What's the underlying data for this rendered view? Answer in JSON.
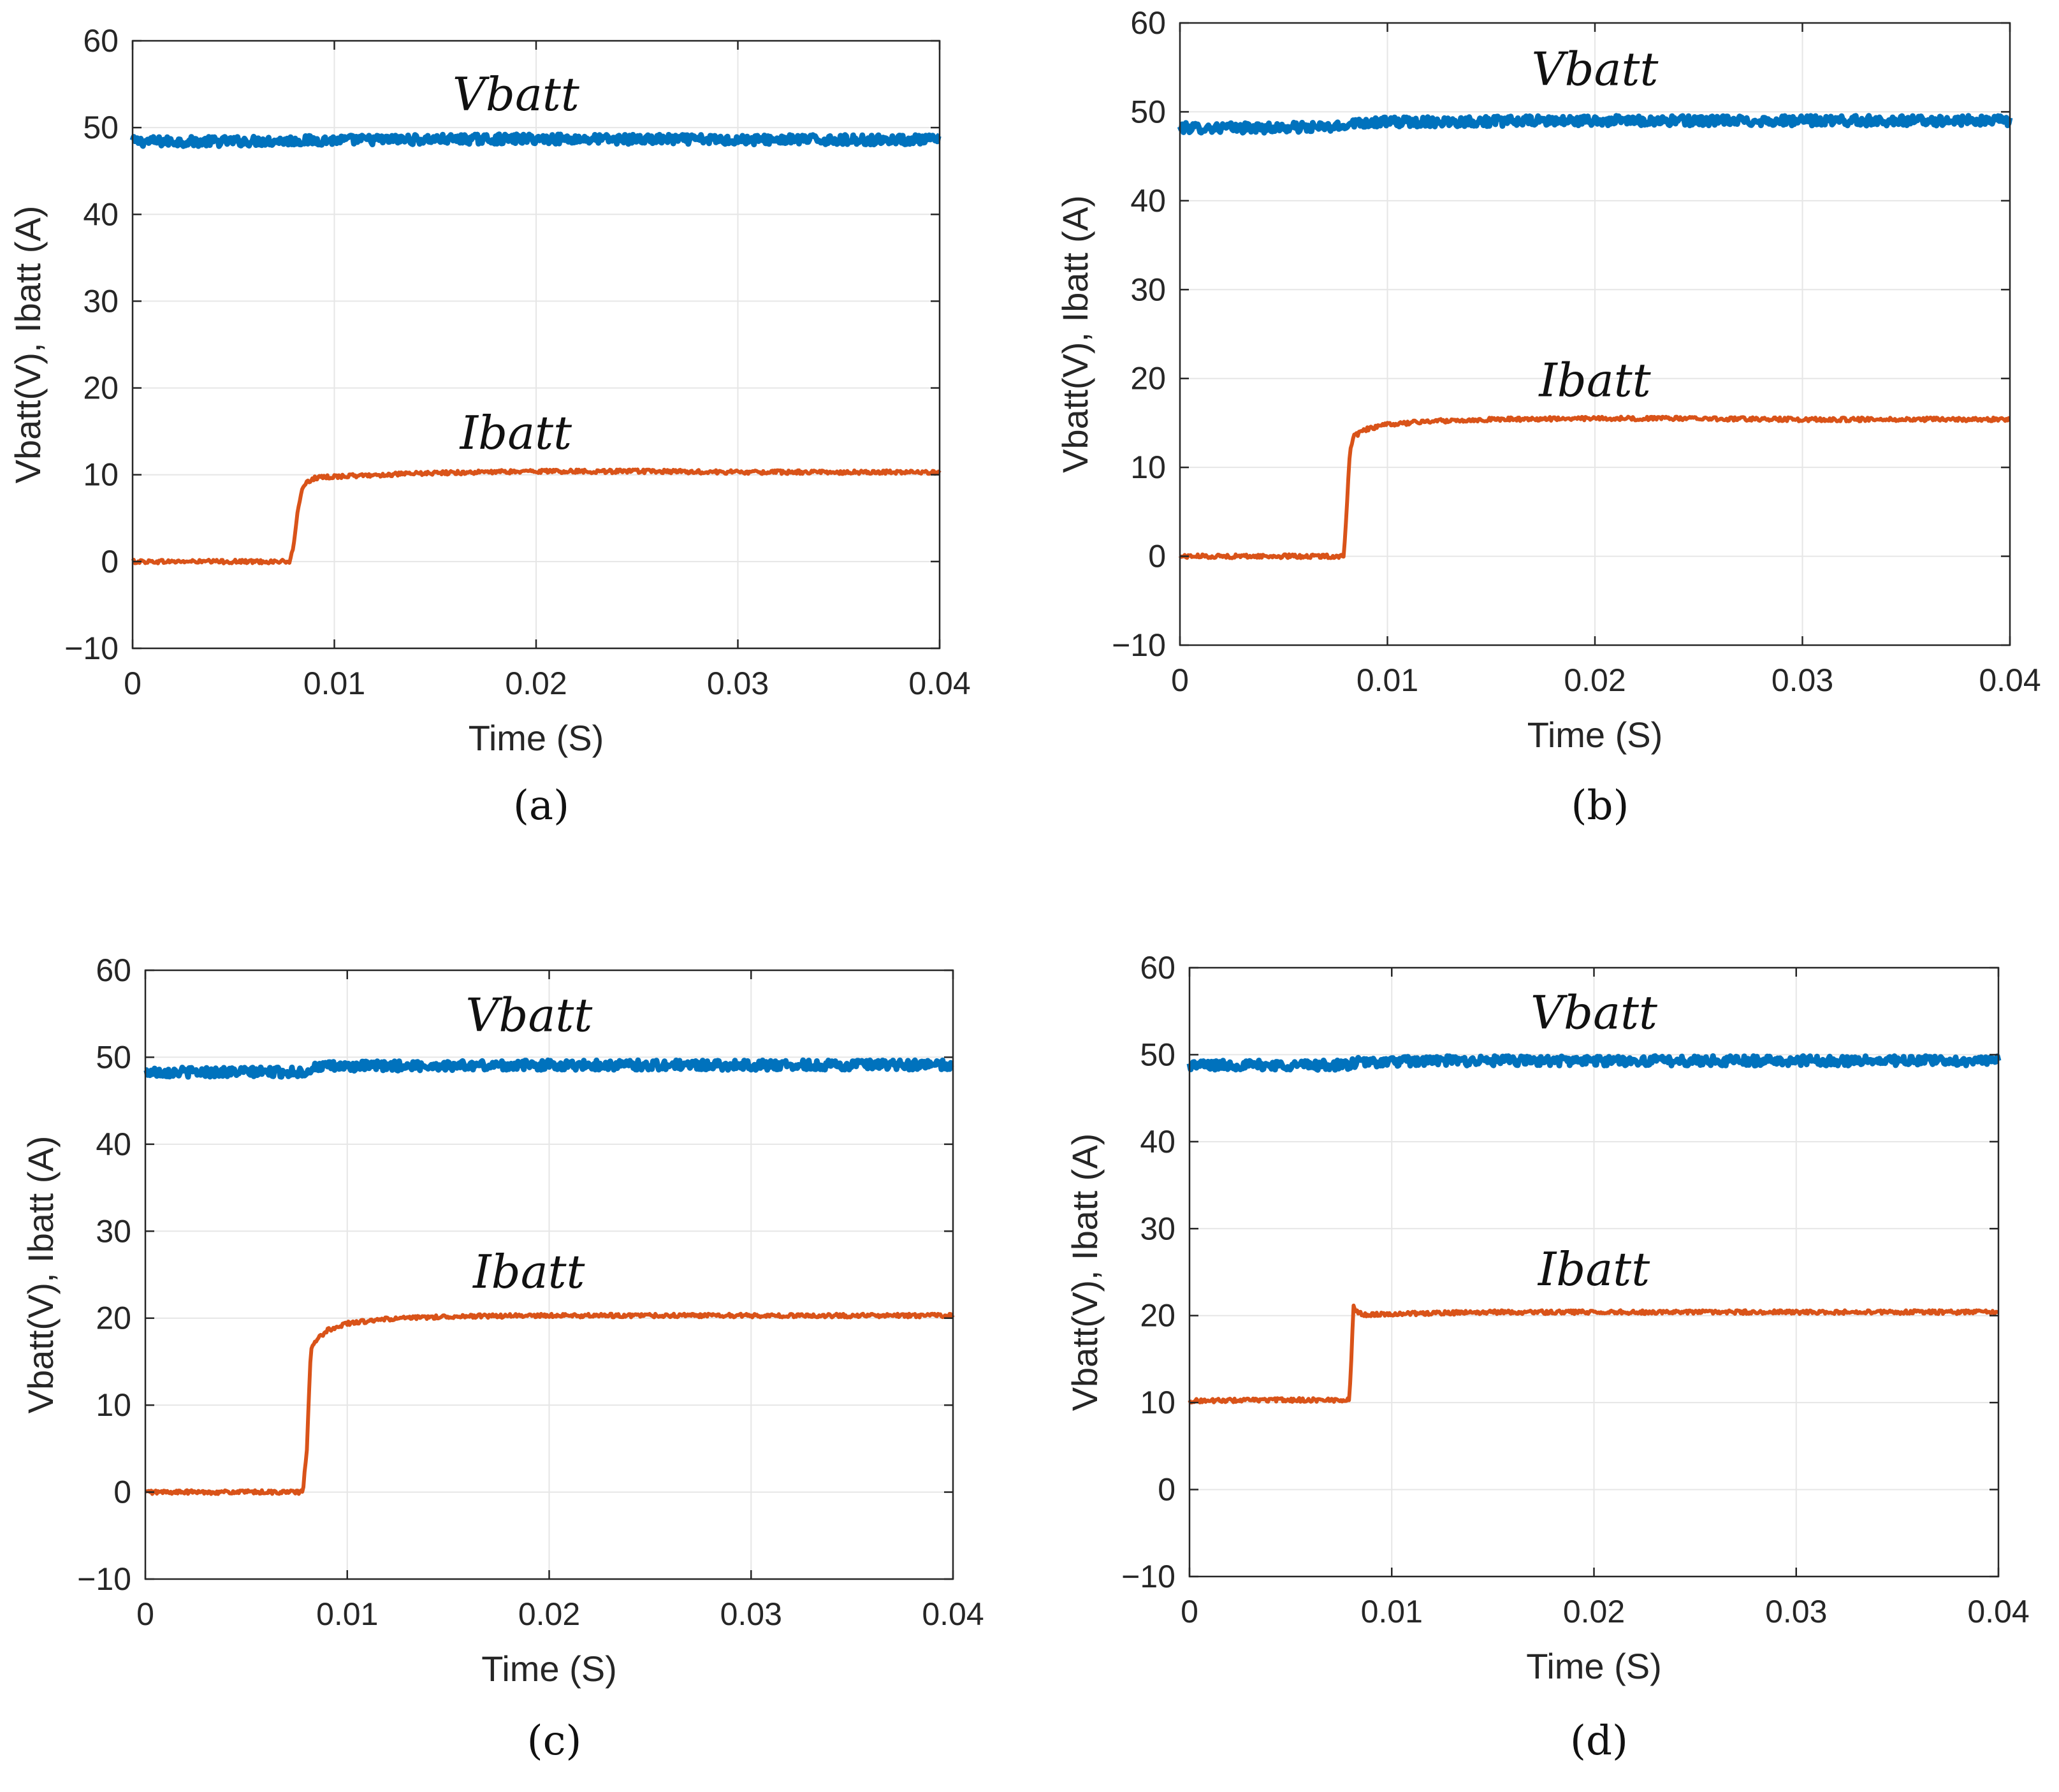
{
  "chart_data": [
    {
      "type": "line",
      "panel": "(a)",
      "xlabel": "Time (S)",
      "ylabel": "Vbatt(V), Ibatt (A)",
      "xlim": [
        0,
        0.04
      ],
      "ylim": [
        -10,
        60
      ],
      "xticks": [
        "0",
        "0.01",
        "0.02",
        "0.03",
        "0.04"
      ],
      "yticks": [
        "−10",
        "0",
        "10",
        "20",
        "30",
        "40",
        "50",
        "60"
      ],
      "grid": true,
      "series": [
        {
          "name": "Vbatt",
          "label": "Vbatt",
          "color": "#0072BD",
          "x": [
            0,
            0.004,
            0.008,
            0.012,
            0.02,
            0.03,
            0.04
          ],
          "y": [
            48.4,
            48.4,
            48.5,
            48.6,
            48.7,
            48.6,
            48.6
          ]
        },
        {
          "name": "Ibatt",
          "label": "Ibatt",
          "color": "#D95319",
          "x": [
            0,
            0.0078,
            0.008,
            0.0082,
            0.0084,
            0.0087,
            0.009,
            0.01,
            0.015,
            0.02,
            0.025,
            0.03,
            0.04
          ],
          "y": [
            0,
            0,
            2,
            6,
            8.5,
            9.2,
            9.6,
            9.8,
            10.2,
            10.4,
            10.4,
            10.3,
            10.3
          ]
        }
      ]
    },
    {
      "type": "line",
      "panel": "(b)",
      "xlabel": "Time (S)",
      "ylabel": "Vbatt(V), Ibatt (A)",
      "xlim": [
        0,
        0.04
      ],
      "ylim": [
        -10,
        60
      ],
      "xticks": [
        "0",
        "0.01",
        "0.02",
        "0.03",
        "0.04"
      ],
      "yticks": [
        "−10",
        "0",
        "10",
        "20",
        "30",
        "40",
        "50",
        "60"
      ],
      "grid": true,
      "series": [
        {
          "name": "Vbatt",
          "label": "Vbatt",
          "color": "#0072BD",
          "x": [
            0,
            0.004,
            0.0079,
            0.0081,
            0.012,
            0.02,
            0.03,
            0.04
          ],
          "y": [
            48.2,
            48.2,
            48.3,
            48.8,
            48.9,
            49.0,
            49.0,
            49.0
          ]
        },
        {
          "name": "Ibatt",
          "label": "Ibatt",
          "color": "#D95319",
          "x": [
            0,
            0.0079,
            0.008,
            0.0082,
            0.0084,
            0.009,
            0.01,
            0.012,
            0.015,
            0.02,
            0.025,
            0.03,
            0.04
          ],
          "y": [
            0,
            0,
            4,
            12,
            13.5,
            14.3,
            14.8,
            15.2,
            15.4,
            15.5,
            15.5,
            15.4,
            15.4
          ]
        }
      ]
    },
    {
      "type": "line",
      "panel": "(c)",
      "xlabel": "Time (S)",
      "ylabel": "Vbatt(V), Ibatt (A)",
      "xlim": [
        0,
        0.04
      ],
      "ylim": [
        -10,
        60
      ],
      "xticks": [
        "0",
        "0.01",
        "0.02",
        "0.03",
        "0.04"
      ],
      "yticks": [
        "−10",
        "0",
        "10",
        "20",
        "30",
        "40",
        "50",
        "60"
      ],
      "grid": true,
      "series": [
        {
          "name": "Vbatt",
          "label": "Vbatt",
          "color": "#0072BD",
          "x": [
            0,
            0.004,
            0.0079,
            0.0085,
            0.012,
            0.02,
            0.03,
            0.04
          ],
          "y": [
            48.3,
            48.3,
            48.3,
            48.9,
            49.0,
            49.1,
            49.1,
            49.1
          ]
        },
        {
          "name": "Ibatt",
          "label": "Ibatt",
          "color": "#D95319",
          "x": [
            0,
            0.0078,
            0.008,
            0.0082,
            0.0085,
            0.009,
            0.01,
            0.012,
            0.015,
            0.02,
            0.03,
            0.04
          ],
          "y": [
            0,
            0,
            5,
            16.5,
            17.5,
            18.6,
            19.4,
            19.9,
            20.2,
            20.3,
            20.3,
            20.3
          ]
        }
      ]
    },
    {
      "type": "line",
      "panel": "(d)",
      "xlabel": "Time (S)",
      "ylabel": "Vbatt(V), Ibatt (A)",
      "xlim": [
        0,
        0.04
      ],
      "ylim": [
        -10,
        60
      ],
      "xticks": [
        "0",
        "0.01",
        "0.02",
        "0.03",
        "0.04"
      ],
      "yticks": [
        "−10",
        "0",
        "10",
        "20",
        "30",
        "40",
        "50",
        "60"
      ],
      "grid": true,
      "series": [
        {
          "name": "Vbatt",
          "label": "Vbatt",
          "color": "#0072BD",
          "x": [
            0,
            0.004,
            0.0079,
            0.0082,
            0.012,
            0.02,
            0.03,
            0.04
          ],
          "y": [
            48.8,
            48.8,
            48.8,
            49.1,
            49.3,
            49.3,
            49.3,
            49.3
          ]
        },
        {
          "name": "Ibatt",
          "label": "Ibatt",
          "color": "#D95319",
          "x": [
            0,
            0.004,
            0.0079,
            0.008,
            0.0081,
            0.0083,
            0.0087,
            0.01,
            0.015,
            0.02,
            0.03,
            0.04
          ],
          "y": [
            10.2,
            10.3,
            10.3,
            15,
            21,
            20.4,
            20.1,
            20.2,
            20.4,
            20.4,
            20.4,
            20.4
          ]
        }
      ]
    }
  ]
}
